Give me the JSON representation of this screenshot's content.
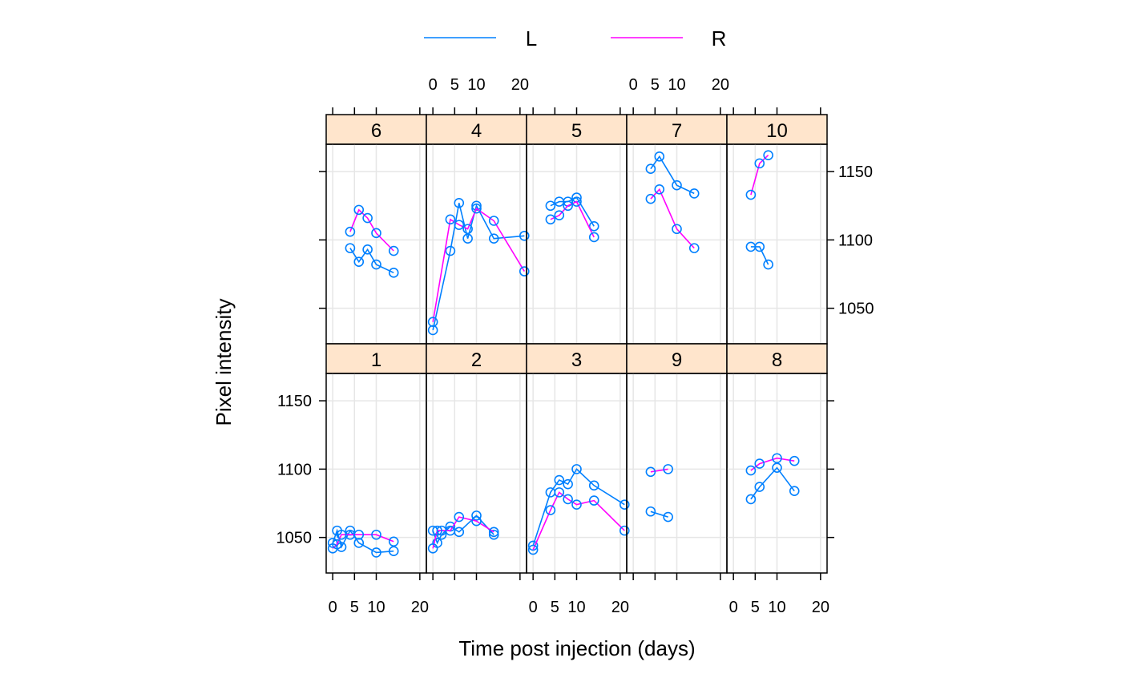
{
  "chart_data": {
    "type": "line",
    "xlabel": "Time post injection (days)",
    "ylabel": "Pixel intensity",
    "xlim": [
      -1.5,
      21.5
    ],
    "ylim": [
      1024,
      1170
    ],
    "x_ticks": [
      0,
      5,
      10,
      20
    ],
    "x_tick_labels": [
      "0",
      "5",
      "10",
      "20"
    ],
    "y_ticks": [
      1050,
      1100,
      1150
    ],
    "y_tick_labels": [
      "1050",
      "1100",
      "1150"
    ],
    "grid": true,
    "layout": {
      "columns": 5,
      "rows": 2
    },
    "legend": {
      "position": "top",
      "entries": [
        {
          "label": "L",
          "color": "#0080ff"
        },
        {
          "label": "R",
          "color": "#ff00ff"
        }
      ]
    },
    "colors": {
      "strip": "#ffe5cc",
      "point": "#0080ff",
      "L": "#0080ff",
      "R": "#ff00ff",
      "grid": "#e6e6e6"
    },
    "panels": [
      {
        "label": "6",
        "row": "top",
        "col": 1,
        "series": [
          {
            "name": "L",
            "x": [
              4,
              6,
              8,
              10,
              14
            ],
            "y": [
              1094,
              1084,
              1093,
              1082,
              1076
            ]
          },
          {
            "name": "R",
            "x": [
              4,
              6,
              8,
              10,
              14
            ],
            "y": [
              1106,
              1122,
              1116,
              1105,
              1092
            ]
          }
        ]
      },
      {
        "label": "4",
        "row": "top",
        "col": 2,
        "series": [
          {
            "name": "L",
            "x": [
              0,
              4,
              6,
              8,
              10,
              14,
              21
            ],
            "y": [
              1034,
              1092,
              1127,
              1101,
              1125,
              1101,
              1103
            ]
          },
          {
            "name": "R",
            "x": [
              0,
              4,
              6,
              8,
              10,
              14,
              21
            ],
            "y": [
              1040,
              1115,
              1111,
              1108,
              1123,
              1114,
              1077
            ]
          }
        ]
      },
      {
        "label": "5",
        "row": "top",
        "col": 3,
        "series": [
          {
            "name": "L",
            "x": [
              4,
              6,
              8,
              10,
              14
            ],
            "y": [
              1125,
              1128,
              1128,
              1131,
              1110
            ]
          },
          {
            "name": "R",
            "x": [
              4,
              6,
              8,
              10,
              14
            ],
            "y": [
              1115,
              1118,
              1125,
              1128,
              1102
            ]
          }
        ]
      },
      {
        "label": "7",
        "row": "top",
        "col": 4,
        "series": [
          {
            "name": "L",
            "x": [
              4,
              6,
              10,
              14
            ],
            "y": [
              1152,
              1161,
              1140,
              1134
            ]
          },
          {
            "name": "R",
            "x": [
              4,
              6,
              10,
              14
            ],
            "y": [
              1130,
              1137,
              1108,
              1094
            ]
          }
        ]
      },
      {
        "label": "10",
        "row": "top",
        "col": 5,
        "series": [
          {
            "name": "L",
            "x": [
              4,
              6,
              8
            ],
            "y": [
              1095,
              1095,
              1082
            ]
          },
          {
            "name": "R",
            "x": [
              4,
              6,
              8
            ],
            "y": [
              1133,
              1156,
              1162
            ]
          }
        ]
      },
      {
        "label": "1",
        "row": "bottom",
        "col": 1,
        "series": [
          {
            "name": "L",
            "x": [
              0,
              1,
              2,
              4,
              6,
              10,
              14
            ],
            "y": [
              1046,
              1055,
              1043,
              1055,
              1046,
              1039,
              1040
            ]
          },
          {
            "name": "R",
            "x": [
              0,
              1,
              2,
              4,
              6,
              10,
              14
            ],
            "y": [
              1042,
              1045,
              1052,
              1052,
              1052,
              1052,
              1047
            ]
          }
        ]
      },
      {
        "label": "2",
        "row": "bottom",
        "col": 2,
        "series": [
          {
            "name": "L",
            "x": [
              0,
              1,
              2,
              4,
              6,
              10,
              14
            ],
            "y": [
              1055,
              1046,
              1052,
              1058,
              1054,
              1066,
              1052
            ]
          },
          {
            "name": "R",
            "x": [
              0,
              1,
              2,
              4,
              6,
              10,
              14
            ],
            "y": [
              1042,
              1055,
              1055,
              1055,
              1065,
              1062,
              1054
            ]
          }
        ]
      },
      {
        "label": "3",
        "row": "bottom",
        "col": 3,
        "series": [
          {
            "name": "L",
            "x": [
              0,
              4,
              6,
              8,
              10,
              14,
              21
            ],
            "y": [
              1044,
              1083,
              1092,
              1089,
              1100,
              1088,
              1074
            ]
          },
          {
            "name": "R",
            "x": [
              0,
              4,
              6,
              8,
              10,
              14,
              21
            ],
            "y": [
              1041,
              1070,
              1083,
              1078,
              1074,
              1077,
              1055
            ]
          }
        ]
      },
      {
        "label": "9",
        "row": "bottom",
        "col": 4,
        "series": [
          {
            "name": "L",
            "x": [
              4,
              8
            ],
            "y": [
              1069,
              1065
            ]
          },
          {
            "name": "R",
            "x": [
              4,
              8
            ],
            "y": [
              1098,
              1100
            ]
          }
        ]
      },
      {
        "label": "8",
        "row": "bottom",
        "col": 5,
        "series": [
          {
            "name": "L",
            "x": [
              4,
              6,
              10,
              14
            ],
            "y": [
              1078,
              1087,
              1101,
              1084
            ]
          },
          {
            "name": "R",
            "x": [
              4,
              6,
              10,
              14
            ],
            "y": [
              1099,
              1104,
              1108,
              1106
            ]
          }
        ]
      }
    ]
  }
}
